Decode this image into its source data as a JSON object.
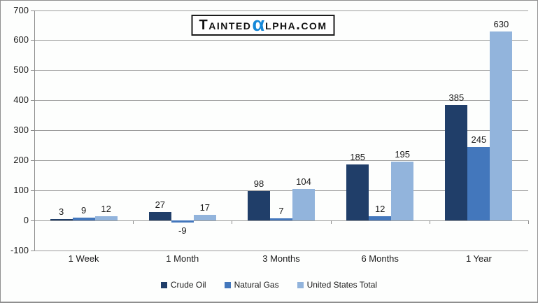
{
  "logo": {
    "prefix": "Tainted",
    "alpha": "α",
    "suffix": "lpha.com",
    "alpha_color": "#1588D8"
  },
  "chart_data": {
    "type": "bar",
    "title": "",
    "categories": [
      "1 Week",
      "1 Month",
      "3 Months",
      "6 Months",
      "1 Year"
    ],
    "series": [
      {
        "name": "Crude Oil",
        "color": "#203E69",
        "values": [
          3,
          27,
          98,
          185,
          385
        ]
      },
      {
        "name": "Natural Gas",
        "color": "#4377BC",
        "values": [
          9,
          -9,
          7,
          12,
          245
        ]
      },
      {
        "name": "United States Total",
        "color": "#92B4DC",
        "values": [
          12,
          17,
          104,
          195,
          630
        ]
      }
    ],
    "xlabel": "",
    "ylabel": "",
    "ylim": [
      -100,
      700
    ],
    "yticks": [
      700,
      600,
      500,
      400,
      300,
      200,
      100,
      0,
      -100
    ],
    "grid": true,
    "legend_position": "bottom",
    "data_labels": true
  },
  "style": {
    "gridline_color": "#9c9c9c",
    "axis_color": "#8c8c8c",
    "text_color": "#1a1a1a",
    "background": "#fdfefd"
  }
}
